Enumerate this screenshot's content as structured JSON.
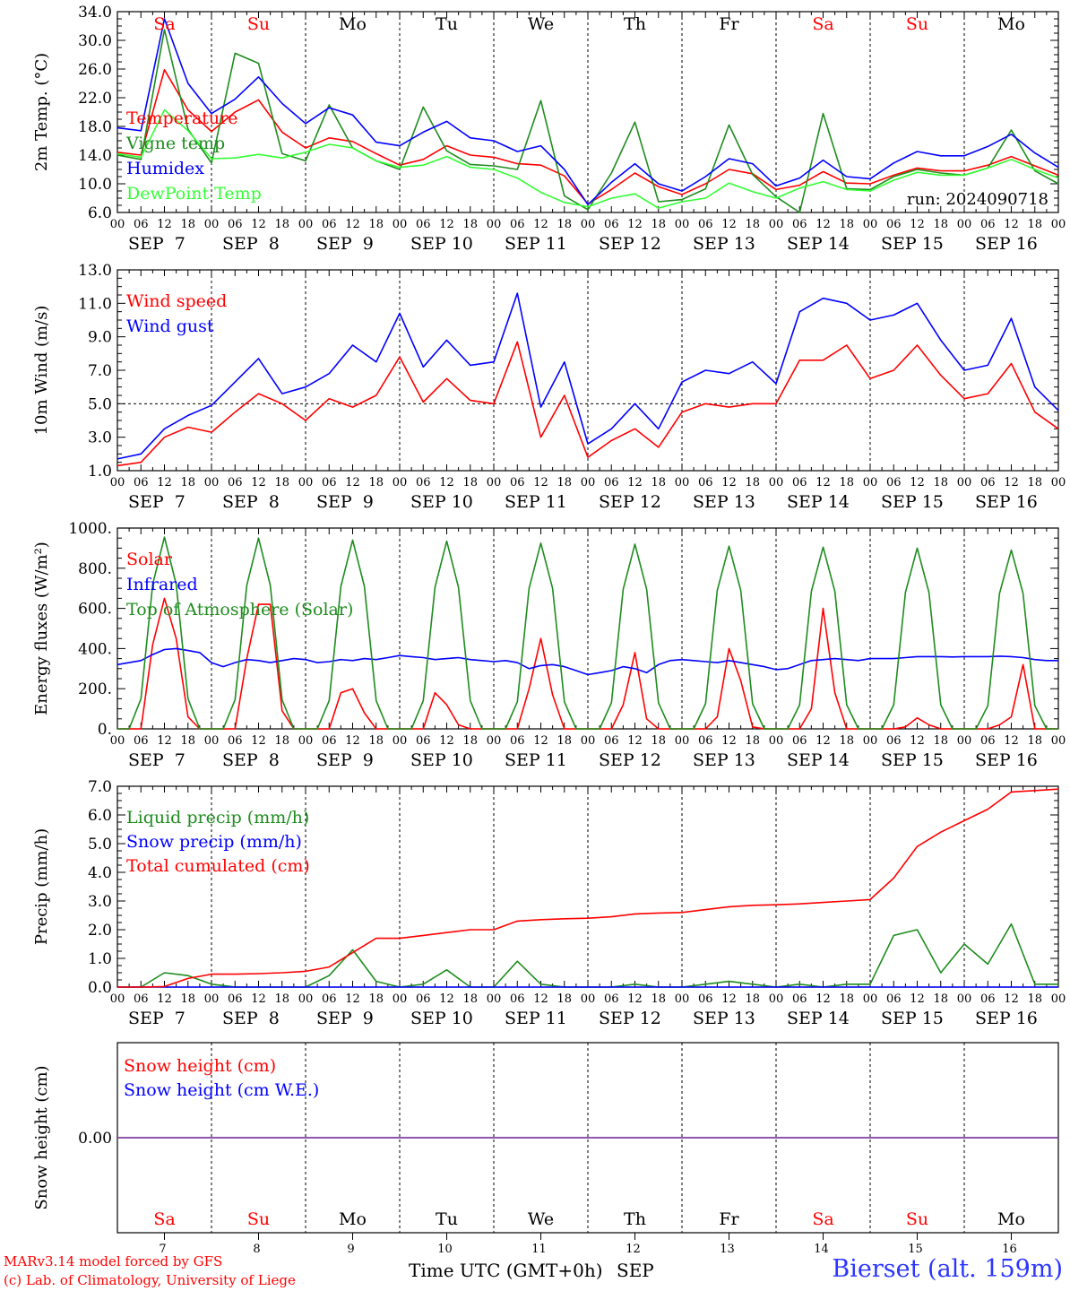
{
  "page": {
    "station_label": "Bierset (alt. 159m)",
    "credit_line1": "MARv3.14 model forced by GFS",
    "credit_line2": "(c) Lab. of Climatology, University of Liege",
    "x_title": "Time UTC (GMT+0h)",
    "x_title_month": "SEP"
  },
  "colors": {
    "red": "#ff0000",
    "green": "#1e8c1e",
    "blue": "#0000ff",
    "lime": "#33ff33",
    "purple": "#7f3f9f",
    "weekend": "#ff0000",
    "weekday": "#000000"
  },
  "chart_data": [
    {
      "type": "line",
      "id": "temperature",
      "ylabel": "2m Temp. (°C)",
      "ylim": [
        6.0,
        34.0
      ],
      "yticks": [
        "6.0",
        "10.0",
        "14.0",
        "18.0",
        "22.0",
        "26.0",
        "30.0",
        "34.0"
      ],
      "day_names": [
        "Sa",
        "Su",
        "Mo",
        "Tu",
        "We",
        "Th",
        "Fr",
        "Sa",
        "Su",
        "Mo"
      ],
      "hour_ticks": [
        "00",
        "06",
        "12",
        "18"
      ],
      "date_labels": [
        "SEP  7",
        "SEP  8",
        "SEP  9",
        "SEP 10",
        "SEP 11",
        "SEP 12",
        "SEP 13",
        "SEP 14",
        "SEP 15",
        "SEP 16"
      ],
      "run_label": "run: 2024090718",
      "hline": null,
      "legend": [
        "Temperature",
        "Vigne temp",
        "Humidex",
        "DewPoint Temp"
      ],
      "x_hours": [
        0,
        6,
        12,
        18,
        24,
        30,
        36,
        42,
        48,
        54,
        60,
        66,
        72,
        78,
        84,
        90,
        96,
        102,
        108,
        114,
        120,
        126,
        132,
        138,
        144,
        150,
        156,
        162,
        168,
        174,
        180,
        186,
        192,
        198,
        204,
        210,
        216,
        222,
        228,
        234,
        240
      ],
      "series": [
        {
          "name": "Temperature",
          "color": "red",
          "values": [
            14.4,
            14.0,
            25.9,
            20.3,
            17.3,
            20.0,
            21.7,
            17.2,
            15.0,
            16.4,
            15.9,
            14.2,
            12.6,
            13.4,
            15.3,
            14.0,
            13.7,
            12.8,
            12.6,
            11.1,
            7.2,
            9.2,
            11.5,
            9.6,
            8.5,
            10.0,
            12.0,
            11.4,
            9.2,
            9.8,
            11.7,
            10.1,
            10.0,
            11.2,
            12.2,
            11.8,
            11.8,
            12.6,
            13.8,
            12.5,
            11.2
          ]
        },
        {
          "name": "Vigne temp",
          "color": "green",
          "values": [
            14.0,
            13.4,
            31.5,
            17.6,
            12.9,
            28.2,
            26.8,
            14.2,
            13.2,
            21.0,
            15.0,
            13.2,
            12.0,
            20.7,
            14.6,
            12.7,
            12.5,
            12.0,
            21.6,
            8.3,
            6.4,
            11.5,
            18.6,
            7.5,
            7.8,
            9.3,
            18.2,
            11.3,
            8.2,
            6.0,
            19.8,
            9.3,
            9.2,
            11.0,
            12.0,
            11.5,
            11.2,
            12.2,
            17.5,
            11.8,
            10.0
          ]
        },
        {
          "name": "Humidex",
          "color": "blue",
          "values": [
            17.8,
            17.4,
            33.0,
            24.0,
            19.8,
            21.8,
            24.9,
            21.2,
            18.4,
            20.6,
            19.6,
            15.8,
            15.3,
            17.2,
            18.7,
            16.4,
            16.0,
            14.5,
            15.3,
            12.0,
            7.1,
            10.2,
            12.8,
            10.0,
            9.0,
            11.0,
            13.5,
            12.8,
            9.7,
            10.8,
            13.3,
            11.0,
            10.7,
            12.9,
            14.5,
            13.9,
            13.9,
            15.2,
            16.9,
            14.3,
            12.3
          ]
        },
        {
          "name": "DewPoint Temp",
          "color": "lime",
          "values": [
            14.2,
            13.7,
            20.3,
            17.4,
            13.5,
            13.6,
            14.1,
            13.6,
            14.4,
            15.5,
            15.0,
            13.2,
            12.3,
            12.6,
            13.8,
            12.3,
            12.0,
            10.8,
            8.8,
            7.4,
            6.8,
            8.0,
            8.6,
            6.6,
            7.5,
            8.0,
            10.1,
            8.9,
            8.0,
            9.4,
            10.3,
            9.2,
            9.0,
            10.5,
            11.6,
            11.2,
            11.2,
            12.2,
            13.4,
            12.0,
            10.8
          ]
        }
      ]
    },
    {
      "type": "line",
      "id": "wind",
      "ylabel": "10m Wind (m/s)",
      "ylim": [
        1.0,
        13.0
      ],
      "yticks": [
        "1.0",
        "3.0",
        "5.0",
        "7.0",
        "9.0",
        "11.0",
        "13.0"
      ],
      "hour_ticks": [
        "00",
        "06",
        "12",
        "18"
      ],
      "date_labels": [
        "SEP  7",
        "SEP  8",
        "SEP  9",
        "SEP 10",
        "SEP 11",
        "SEP 12",
        "SEP 13",
        "SEP 14",
        "SEP 15",
        "SEP 16"
      ],
      "hline": 5.0,
      "legend": [
        "Wind speed",
        "Wind gust"
      ],
      "x_hours": [
        0,
        6,
        12,
        18,
        24,
        30,
        36,
        42,
        48,
        54,
        60,
        66,
        72,
        78,
        84,
        90,
        96,
        102,
        108,
        114,
        120,
        126,
        132,
        138,
        144,
        150,
        156,
        162,
        168,
        174,
        180,
        186,
        192,
        198,
        204,
        210,
        216,
        222,
        228,
        234,
        240
      ],
      "series": [
        {
          "name": "Wind speed",
          "color": "red",
          "values": [
            1.3,
            1.5,
            3.0,
            3.6,
            3.3,
            4.5,
            5.6,
            5.0,
            4.0,
            5.3,
            4.8,
            5.5,
            7.8,
            5.1,
            6.5,
            5.2,
            5.0,
            8.7,
            3.0,
            5.5,
            1.8,
            2.8,
            3.5,
            2.4,
            4.5,
            5.0,
            4.8,
            5.0,
            5.0,
            7.6,
            7.6,
            8.5,
            6.5,
            7.0,
            8.5,
            6.7,
            5.3,
            5.6,
            7.4,
            4.5,
            3.5
          ]
        },
        {
          "name": "Wind gust",
          "color": "blue",
          "values": [
            1.7,
            2.0,
            3.5,
            4.3,
            4.9,
            6.3,
            7.7,
            5.6,
            6.0,
            6.8,
            8.5,
            7.5,
            10.4,
            7.2,
            8.8,
            7.3,
            7.5,
            11.6,
            4.8,
            7.5,
            2.6,
            3.5,
            5.0,
            3.5,
            6.3,
            7.0,
            6.8,
            7.5,
            6.2,
            10.5,
            11.3,
            11.0,
            10.0,
            10.3,
            11.0,
            8.8,
            7.0,
            7.3,
            10.1,
            6.0,
            4.6
          ]
        }
      ]
    },
    {
      "type": "line",
      "id": "energy",
      "ylabel": "Energy fluxes (W/m²)",
      "ylim": [
        0,
        1000
      ],
      "yticks": [
        "0.",
        "200.",
        "400.",
        "600.",
        "800.",
        "1000."
      ],
      "hour_ticks": [
        "00",
        "06",
        "12",
        "18"
      ],
      "date_labels": [
        "SEP  7",
        "SEP  8",
        "SEP  9",
        "SEP 10",
        "SEP 11",
        "SEP 12",
        "SEP 13",
        "SEP 14",
        "SEP 15",
        "SEP 16"
      ],
      "hline": null,
      "legend": [
        "Solar",
        "Infrared",
        "Top of Atmosphere (Solar)"
      ],
      "x_hours": [
        0,
        3,
        6,
        9,
        12,
        15,
        18,
        21,
        24,
        27,
        30,
        33,
        36,
        39,
        42,
        45,
        48,
        51,
        54,
        57,
        60,
        63,
        66,
        69,
        72,
        75,
        78,
        81,
        84,
        87,
        90,
        93,
        96,
        99,
        102,
        105,
        108,
        111,
        114,
        117,
        120,
        123,
        126,
        129,
        132,
        135,
        138,
        141,
        144,
        147,
        150,
        153,
        156,
        159,
        162,
        165,
        168,
        171,
        174,
        177,
        180,
        183,
        186,
        189,
        192,
        195,
        198,
        201,
        204,
        207,
        210,
        213,
        216,
        219,
        222,
        225,
        228,
        231,
        234,
        237,
        240
      ],
      "series": [
        {
          "name": "Solar",
          "color": "red",
          "values": [
            0,
            0,
            0,
            420,
            650,
            450,
            60,
            0,
            0,
            0,
            0,
            350,
            620,
            620,
            90,
            0,
            0,
            0,
            0,
            180,
            200,
            80,
            0,
            0,
            0,
            0,
            0,
            180,
            120,
            20,
            0,
            0,
            0,
            0,
            0,
            200,
            450,
            170,
            0,
            0,
            0,
            0,
            0,
            120,
            380,
            50,
            0,
            0,
            0,
            0,
            0,
            60,
            400,
            240,
            10,
            0,
            0,
            0,
            0,
            100,
            600,
            180,
            0,
            0,
            0,
            0,
            0,
            10,
            55,
            20,
            0,
            0,
            0,
            0,
            0,
            20,
            60,
            320,
            0,
            0,
            0
          ]
        },
        {
          "name": "Infrared",
          "color": "blue",
          "values": [
            320,
            330,
            340,
            370,
            395,
            400,
            390,
            380,
            330,
            310,
            330,
            345,
            340,
            330,
            340,
            350,
            345,
            330,
            335,
            345,
            340,
            350,
            345,
            355,
            365,
            360,
            355,
            345,
            350,
            355,
            345,
            340,
            335,
            340,
            330,
            300,
            315,
            320,
            310,
            290,
            270,
            280,
            290,
            310,
            300,
            280,
            320,
            340,
            345,
            340,
            335,
            330,
            340,
            330,
            320,
            310,
            295,
            300,
            320,
            340,
            345,
            350,
            345,
            340,
            350,
            350,
            350,
            355,
            360,
            360,
            360,
            358,
            360,
            360,
            360,
            362,
            360,
            355,
            345,
            340,
            340
          ]
        },
        {
          "name": "Top of Atmosphere (Solar)",
          "color": "green",
          "values": [
            0,
            0,
            150,
            720,
            955,
            720,
            150,
            0,
            0,
            0,
            145,
            715,
            950,
            715,
            145,
            0,
            0,
            0,
            140,
            710,
            940,
            710,
            140,
            0,
            0,
            0,
            140,
            705,
            935,
            705,
            140,
            0,
            0,
            0,
            135,
            700,
            925,
            700,
            135,
            0,
            0,
            0,
            130,
            695,
            920,
            695,
            130,
            0,
            0,
            0,
            125,
            690,
            910,
            690,
            125,
            0,
            0,
            0,
            120,
            685,
            905,
            685,
            120,
            0,
            0,
            0,
            120,
            680,
            900,
            680,
            120,
            0,
            0,
            0,
            115,
            675,
            890,
            675,
            115,
            0,
            0
          ]
        }
      ]
    },
    {
      "type": "line",
      "id": "precip",
      "ylabel": "Precip (mm/h)",
      "ylim": [
        0.0,
        7.0
      ],
      "yticks": [
        "0.0",
        "1.0",
        "2.0",
        "3.0",
        "4.0",
        "5.0",
        "6.0",
        "7.0"
      ],
      "hour_ticks": [
        "00",
        "06",
        "12",
        "18"
      ],
      "date_labels": [
        "SEP  7",
        "SEP  8",
        "SEP  9",
        "SEP 10",
        "SEP 11",
        "SEP 12",
        "SEP 13",
        "SEP 14",
        "SEP 15",
        "SEP 16"
      ],
      "hline": null,
      "legend": [
        "Liquid precip (mm/h)",
        "Snow precip (mm/h)",
        "Total cumulated (cm)"
      ],
      "x_hours": [
        0,
        6,
        12,
        18,
        24,
        30,
        36,
        42,
        48,
        54,
        60,
        66,
        72,
        78,
        84,
        90,
        96,
        102,
        108,
        114,
        120,
        126,
        132,
        138,
        144,
        150,
        156,
        162,
        168,
        174,
        180,
        186,
        192,
        198,
        204,
        210,
        216,
        222,
        228,
        234,
        240
      ],
      "series": [
        {
          "name": "Liquid precip (mm/h)",
          "color": "green",
          "values": [
            0,
            0,
            0.5,
            0.4,
            0.1,
            0,
            0,
            0,
            0,
            0.4,
            1.3,
            0.2,
            0,
            0.1,
            0.6,
            0,
            0,
            0.9,
            0.1,
            0,
            0,
            0,
            0.1,
            0,
            0,
            0.1,
            0.2,
            0.1,
            0,
            0.1,
            0,
            0.1,
            0.1,
            1.8,
            2.0,
            0.5,
            1.5,
            0.8,
            2.2,
            0.1,
            0.1
          ]
        },
        {
          "name": "Snow precip (mm/h)",
          "color": "blue",
          "values": [
            0,
            0,
            0,
            0,
            0,
            0,
            0,
            0,
            0,
            0,
            0,
            0,
            0,
            0,
            0,
            0,
            0,
            0,
            0,
            0,
            0,
            0,
            0,
            0,
            0,
            0,
            0,
            0,
            0,
            0,
            0,
            0,
            0,
            0,
            0,
            0,
            0,
            0,
            0,
            0,
            0
          ]
        },
        {
          "name": "Total cumulated (cm)",
          "color": "red",
          "values": [
            0,
            0,
            0.02,
            0.3,
            0.45,
            0.45,
            0.47,
            0.5,
            0.55,
            0.7,
            1.2,
            1.7,
            1.7,
            1.8,
            1.9,
            2.0,
            2.0,
            2.3,
            2.35,
            2.38,
            2.4,
            2.45,
            2.55,
            2.58,
            2.6,
            2.7,
            2.8,
            2.85,
            2.87,
            2.9,
            2.95,
            3.0,
            3.05,
            3.8,
            4.9,
            5.4,
            5.8,
            6.2,
            6.8,
            6.85,
            6.9
          ]
        }
      ]
    },
    {
      "type": "line",
      "id": "snow",
      "ylabel": "Snow height (cm)",
      "ylim": [
        -1.0,
        1.0
      ],
      "yticks": [
        "0.00"
      ],
      "day_names": [
        "Sa",
        "Su",
        "Mo",
        "Tu",
        "We",
        "Th",
        "Fr",
        "Sa",
        "Su",
        "Mo"
      ],
      "day_numbers": [
        "7",
        "8",
        "9",
        "10",
        "11",
        "12",
        "13",
        "14",
        "15",
        "16"
      ],
      "hline": null,
      "legend": [
        "Snow height (cm)",
        "Snow height (cm W.E.)"
      ],
      "x_hours": [
        0,
        240
      ],
      "series": [
        {
          "name": "Snow height (cm)",
          "color": "purple",
          "values": [
            0,
            0
          ]
        },
        {
          "name": "Snow height (cm W.E.)",
          "color": "purple",
          "values": [
            0,
            0
          ]
        }
      ]
    }
  ]
}
